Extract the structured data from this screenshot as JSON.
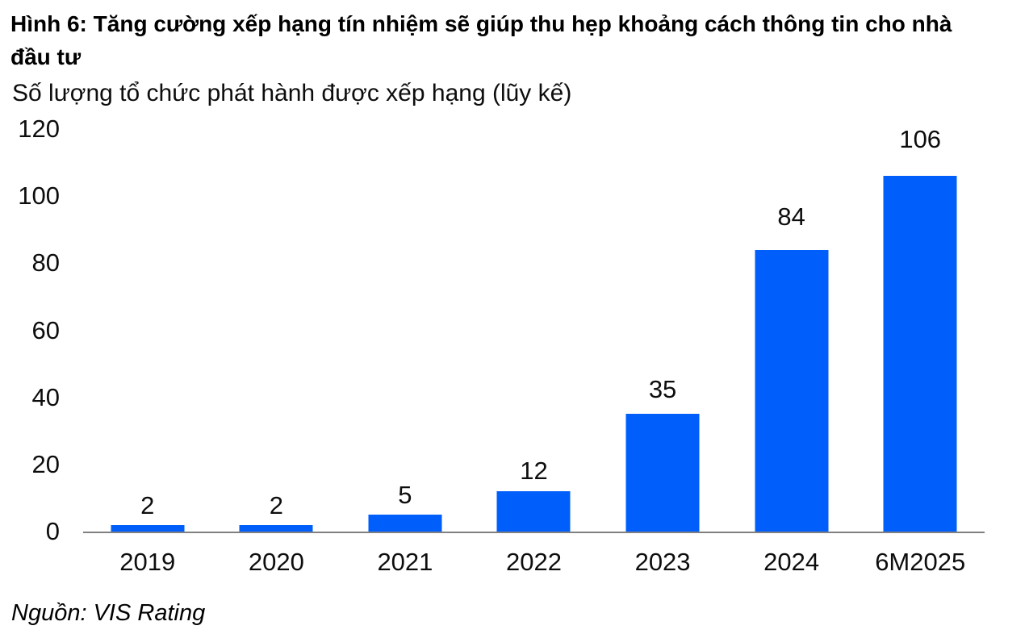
{
  "figure": {
    "title": "Hình 6: Tăng cường xếp hạng tín nhiệm sẽ giúp thu hẹp khoảng cách thông tin cho nhà đầu tư",
    "subtitle": "Số lượng tổ chức phát hành được xếp hạng (lũy kế)",
    "source": "Nguồn: VIS Rating"
  },
  "colors": {
    "bar": "#005FFB",
    "axis_line": "#808080",
    "text": "#0d0d0d"
  },
  "chart_data": {
    "type": "bar",
    "categories": [
      "2019",
      "2020",
      "2021",
      "2022",
      "2023",
      "2024",
      "6M2025"
    ],
    "values": [
      2,
      2,
      5,
      12,
      35,
      84,
      106
    ],
    "title": "Số lượng tổ chức phát hành được xếp hạng (lũy kế)",
    "xlabel": "",
    "ylabel": "",
    "ylim": [
      0,
      120
    ],
    "yticks": [
      0,
      20,
      40,
      60,
      80,
      100,
      120
    ],
    "grid": false,
    "legend": "none",
    "data_labels": true,
    "bar_color": "#005FFB"
  }
}
